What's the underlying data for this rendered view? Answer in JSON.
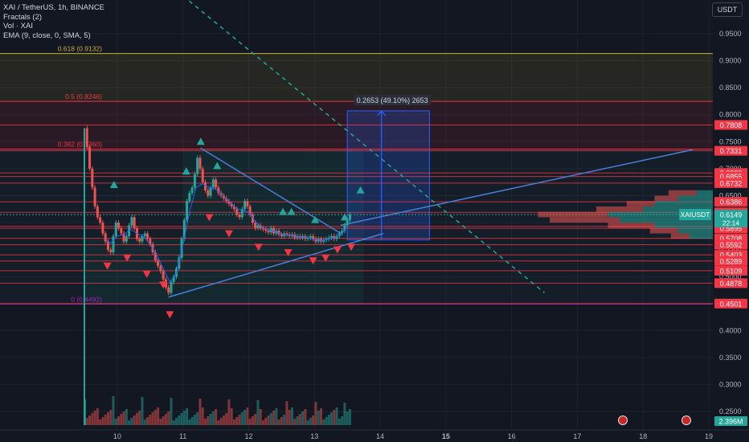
{
  "legend": {
    "symbol": "XAI / TetherUS, 1h, BINANCE",
    "fractals": "Fractals (2)",
    "volume": "Vol · XAI",
    "ema": "EMA (9, close, 0, SMA, 5)"
  },
  "currency_button": "USDT",
  "colors": {
    "background": "#131722",
    "up": "#26a69a",
    "down": "#ef5350",
    "levels": "#f23645",
    "fib_top": "#c9b13a",
    "trendline": "#4a7fd6",
    "axis_text": "#b2b5be",
    "volume_up": "#26a69a",
    "volume_down": "#ef5350"
  },
  "chart_data": {
    "type": "line",
    "ylim": [
      0.225,
      0.99
    ],
    "y_ticks": [
      "0.9500",
      "0.9000",
      "0.8500",
      "0.8000",
      "0.7500",
      "0.7000",
      "0.6500",
      "0.6000",
      "0.5500",
      "0.5000",
      "0.4000",
      "0.3500",
      "0.3000",
      "0.2500"
    ],
    "x_ticks": [
      "10",
      "11",
      "12",
      "13",
      "14",
      "15",
      "16",
      "17",
      "18",
      "19"
    ],
    "x_range_days": [
      9.5,
      19.0
    ],
    "fib_levels": [
      {
        "label": "0.618 (0.9132)",
        "value": 0.9132
      },
      {
        "label": "0.5 (0.8246)",
        "value": 0.8246
      },
      {
        "label": "0.382 (0.7360)",
        "value": 0.736
      },
      {
        "label": "0 (0.4492)",
        "value": 0.4492
      }
    ],
    "price_levels": [
      "0.7808",
      "0.7331",
      "0.6920",
      "0.6855",
      "0.6732",
      "0.6386",
      "0.6191",
      "0.5930",
      "0.5895",
      "0.5708",
      "0.5592",
      "0.5403",
      "0.5289",
      "0.5109",
      "0.4878",
      "0.4501"
    ],
    "current_price": {
      "symbol": "XAIUSDT",
      "price": "0.6149",
      "countdown": "22:14"
    },
    "measure_label": "0.2653 (49.10%) 2653",
    "volume_label": "2.396M",
    "price_path": [
      [
        9.5,
        0.775
      ],
      [
        9.54,
        0.74
      ],
      [
        9.58,
        0.7
      ],
      [
        9.62,
        0.665
      ],
      [
        9.66,
        0.63
      ],
      [
        9.7,
        0.61
      ],
      [
        9.74,
        0.6
      ],
      [
        9.78,
        0.58
      ],
      [
        9.82,
        0.565
      ],
      [
        9.86,
        0.55
      ],
      [
        9.9,
        0.545
      ],
      [
        9.94,
        0.575
      ],
      [
        9.98,
        0.6
      ],
      [
        10.02,
        0.59
      ],
      [
        10.06,
        0.58
      ],
      [
        10.1,
        0.565
      ],
      [
        10.14,
        0.575
      ],
      [
        10.18,
        0.595
      ],
      [
        10.22,
        0.61
      ],
      [
        10.26,
        0.59
      ],
      [
        10.3,
        0.57
      ],
      [
        10.34,
        0.565
      ],
      [
        10.38,
        0.575
      ],
      [
        10.42,
        0.58
      ],
      [
        10.46,
        0.57
      ],
      [
        10.5,
        0.56
      ],
      [
        10.54,
        0.545
      ],
      [
        10.58,
        0.53
      ],
      [
        10.62,
        0.52
      ],
      [
        10.66,
        0.51
      ],
      [
        10.7,
        0.495
      ],
      [
        10.74,
        0.48
      ],
      [
        10.78,
        0.47
      ],
      [
        10.82,
        0.49
      ],
      [
        10.86,
        0.5
      ],
      [
        10.9,
        0.515
      ],
      [
        10.94,
        0.535
      ],
      [
        10.98,
        0.57
      ],
      [
        11.02,
        0.605
      ],
      [
        11.06,
        0.64
      ],
      [
        11.1,
        0.655
      ],
      [
        11.14,
        0.665
      ],
      [
        11.18,
        0.69
      ],
      [
        11.22,
        0.72
      ],
      [
        11.26,
        0.7
      ],
      [
        11.3,
        0.675
      ],
      [
        11.34,
        0.66
      ],
      [
        11.38,
        0.65
      ],
      [
        11.42,
        0.665
      ],
      [
        11.46,
        0.68
      ],
      [
        11.5,
        0.665
      ],
      [
        11.54,
        0.655
      ],
      [
        11.58,
        0.65
      ],
      [
        11.62,
        0.645
      ],
      [
        11.66,
        0.64
      ],
      [
        11.7,
        0.635
      ],
      [
        11.74,
        0.63
      ],
      [
        11.78,
        0.625
      ],
      [
        11.82,
        0.615
      ],
      [
        11.86,
        0.61
      ],
      [
        11.9,
        0.625
      ],
      [
        11.94,
        0.64
      ],
      [
        11.98,
        0.63
      ],
      [
        12.02,
        0.615
      ],
      [
        12.06,
        0.6
      ],
      [
        12.1,
        0.59
      ],
      [
        12.14,
        0.595
      ],
      [
        12.18,
        0.59
      ],
      [
        12.22,
        0.588
      ],
      [
        12.26,
        0.585
      ],
      [
        12.3,
        0.582
      ],
      [
        12.34,
        0.59
      ],
      [
        12.38,
        0.58
      ],
      [
        12.42,
        0.585
      ],
      [
        12.46,
        0.578
      ],
      [
        12.5,
        0.575
      ],
      [
        12.54,
        0.58
      ],
      [
        12.58,
        0.578
      ],
      [
        12.62,
        0.575
      ],
      [
        12.66,
        0.578
      ],
      [
        12.7,
        0.572
      ],
      [
        12.74,
        0.575
      ],
      [
        12.78,
        0.572
      ],
      [
        12.82,
        0.575
      ],
      [
        12.86,
        0.57
      ],
      [
        12.9,
        0.572
      ],
      [
        12.94,
        0.575
      ],
      [
        12.98,
        0.57
      ],
      [
        13.02,
        0.565
      ],
      [
        13.06,
        0.57
      ],
      [
        13.1,
        0.565
      ],
      [
        13.14,
        0.568
      ],
      [
        13.18,
        0.57
      ],
      [
        13.22,
        0.572
      ],
      [
        13.26,
        0.575
      ],
      [
        13.3,
        0.57
      ],
      [
        13.34,
        0.575
      ],
      [
        13.38,
        0.58
      ],
      [
        13.42,
        0.585
      ],
      [
        13.46,
        0.595
      ],
      [
        13.5,
        0.605
      ],
      [
        13.54,
        0.615
      ]
    ],
    "ema_path": [
      [
        9.82,
        0.57
      ],
      [
        9.9,
        0.562
      ],
      [
        10.0,
        0.575
      ],
      [
        10.1,
        0.578
      ],
      [
        10.2,
        0.588
      ],
      [
        10.3,
        0.58
      ],
      [
        10.4,
        0.574
      ],
      [
        10.5,
        0.56
      ],
      [
        10.6,
        0.54
      ],
      [
        10.7,
        0.515
      ],
      [
        10.8,
        0.49
      ],
      [
        10.9,
        0.505
      ],
      [
        11.0,
        0.56
      ],
      [
        11.1,
        0.62
      ],
      [
        11.2,
        0.665
      ],
      [
        11.3,
        0.672
      ],
      [
        11.4,
        0.665
      ],
      [
        11.5,
        0.662
      ],
      [
        11.6,
        0.65
      ],
      [
        11.7,
        0.64
      ],
      [
        11.8,
        0.628
      ],
      [
        11.9,
        0.622
      ],
      [
        12.0,
        0.62
      ],
      [
        12.1,
        0.602
      ],
      [
        12.2,
        0.592
      ],
      [
        12.3,
        0.586
      ],
      [
        12.4,
        0.584
      ],
      [
        12.5,
        0.579
      ],
      [
        12.6,
        0.577
      ],
      [
        12.7,
        0.575
      ],
      [
        12.8,
        0.573
      ],
      [
        12.9,
        0.572
      ],
      [
        13.0,
        0.569
      ],
      [
        13.1,
        0.567
      ],
      [
        13.2,
        0.569
      ],
      [
        13.3,
        0.572
      ],
      [
        13.4,
        0.578
      ],
      [
        13.5,
        0.592
      ]
    ],
    "fractals_up": [
      [
        9.95,
        0.67
      ],
      [
        11.05,
        0.695
      ],
      [
        11.27,
        0.75
      ],
      [
        11.52,
        0.705
      ],
      [
        12.52,
        0.62
      ],
      [
        12.65,
        0.62
      ],
      [
        13.01,
        0.605
      ],
      [
        13.46,
        0.61
      ],
      [
        13.7,
        0.66
      ]
    ],
    "fractals_down": [
      [
        9.85,
        0.52
      ],
      [
        10.15,
        0.535
      ],
      [
        10.45,
        0.505
      ],
      [
        10.7,
        0.485
      ],
      [
        10.8,
        0.43
      ],
      [
        11.4,
        0.61
      ],
      [
        11.7,
        0.58
      ],
      [
        12.15,
        0.555
      ],
      [
        12.6,
        0.545
      ],
      [
        12.98,
        0.53
      ],
      [
        13.17,
        0.535
      ],
      [
        13.35,
        0.55
      ],
      [
        13.56,
        0.555
      ]
    ],
    "trendlines": [
      {
        "from": [
          10.78,
          0.462
        ],
        "to": [
          14.05,
          0.58
        ]
      },
      {
        "from": [
          11.27,
          0.738
        ],
        "to": [
          13.4,
          0.58
        ]
      },
      {
        "from": [
          13.4,
          0.595
        ],
        "to": [
          18.75,
          0.735
        ]
      }
    ],
    "dashed_line": {
      "from": [
        11.0,
        1.02
      ],
      "to": [
        16.5,
        0.47
      ]
    },
    "zones": [
      {
        "from_x": 11.0,
        "to_x": 13.75,
        "from_y": 0.57,
        "to_y": 0.735
      },
      {
        "from_x": 9.5,
        "to_x": 13.75,
        "from_y": 0.45,
        "to_y": 0.57
      }
    ],
    "measure_box": {
      "from_x": 13.5,
      "to_x": 14.75,
      "from_y": 0.568,
      "to_y": 0.807,
      "arrow_x": 14.02
    },
    "volume_profile": [
      {
        "price": 0.655,
        "up": 0.07,
        "down": 0.12
      },
      {
        "price": 0.645,
        "up": 0.15,
        "down": 0.1
      },
      {
        "price": 0.635,
        "up": 0.25,
        "down": 0.12
      },
      {
        "price": 0.625,
        "up": 0.3,
        "down": 0.2
      },
      {
        "price": 0.615,
        "up": 0.45,
        "down": 0.3
      },
      {
        "price": 0.605,
        "up": 0.4,
        "down": 0.3
      },
      {
        "price": 0.595,
        "up": 0.25,
        "down": 0.2
      },
      {
        "price": 0.585,
        "up": 0.15,
        "down": 0.12
      },
      {
        "price": 0.575,
        "up": 0.1,
        "down": 0.08
      }
    ]
  }
}
